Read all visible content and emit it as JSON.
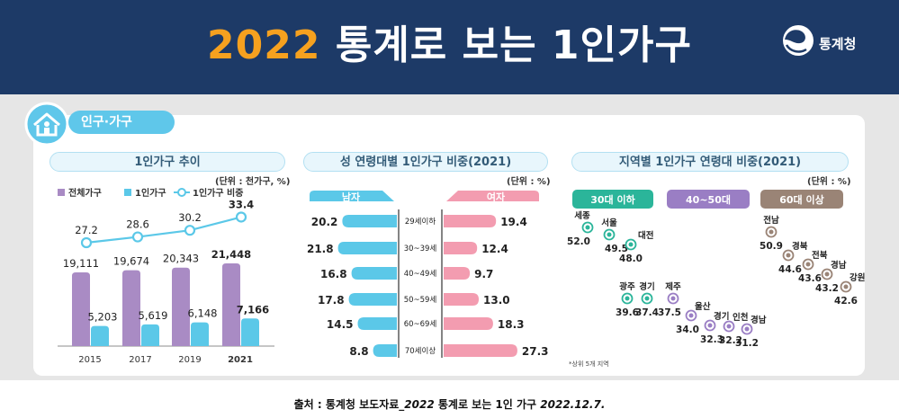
{
  "header": {
    "year": "2022",
    "title_rest": "통계로 보는 1인가구",
    "logo_text": "통계청"
  },
  "section": {
    "title": "인구·가구"
  },
  "source": {
    "prefix": "출처 : 통계청 보도자료_",
    "year": "2022",
    "doc": " 통계로 보는 1인 가구 ",
    "date": "2022.12.7."
  },
  "colors": {
    "purple": "#a98bc4",
    "cyan": "#5bc8e8",
    "pink": "#f39cb0",
    "green": "#2bb59a",
    "violet": "#9a7ec4",
    "brown": "#9a8476",
    "line": "#5bc8e8"
  },
  "chart_data": [
    {
      "type": "bar",
      "title": "1인가구 추이",
      "unit": "(단위 : 천가구, %)",
      "categories": [
        "2015",
        "2017",
        "2019",
        "2021"
      ],
      "series": [
        {
          "name": "전체가구",
          "values": [
            19111,
            19674,
            20343,
            21448
          ],
          "labels": [
            "19,111",
            "19,674",
            "20,343",
            "21,448"
          ]
        },
        {
          "name": "1인가구",
          "values": [
            5203,
            5619,
            6148,
            7166
          ],
          "labels": [
            "5,203",
            "5,619",
            "6,148",
            "7,166"
          ]
        },
        {
          "name": "1인가구 비중",
          "type": "line",
          "values": [
            27.2,
            28.6,
            30.2,
            33.4
          ],
          "labels": [
            "27.2",
            "28.6",
            "30.2",
            "33.4"
          ]
        }
      ]
    },
    {
      "type": "bar",
      "title": "성 연령대별 1인가구 비중(2021)",
      "unit": "(단위 : %)",
      "categories": [
        "29세이하",
        "30~39세",
        "40~49세",
        "50~59세",
        "60~69세",
        "70세이상"
      ],
      "series": [
        {
          "name": "남자",
          "values": [
            20.2,
            21.8,
            16.8,
            17.8,
            14.5,
            8.8
          ]
        },
        {
          "name": "여자",
          "values": [
            19.4,
            12.4,
            9.7,
            13.0,
            18.3,
            27.3
          ]
        }
      ]
    },
    {
      "type": "scatter",
      "title": "지역별 1인가구 연령대 비중(2021)",
      "unit": "(단위 : %)",
      "note": "*상위 5개 지역",
      "groups": [
        {
          "name": "30대 이하",
          "points": [
            {
              "region": "세종",
              "value": 52.0
            },
            {
              "region": "서울",
              "value": 49.5
            },
            {
              "region": "대전",
              "value": 48.0
            },
            {
              "region": "광주",
              "value": 39.6
            },
            {
              "region": "경기",
              "value": 37.4
            }
          ]
        },
        {
          "name": "40~50대",
          "points": [
            {
              "region": "제주",
              "value": 37.5
            },
            {
              "region": "울산",
              "value": 34.0
            },
            {
              "region": "경기",
              "value": 32.3
            },
            {
              "region": "인천",
              "value": 32.2
            },
            {
              "region": "경남",
              "value": 31.2
            }
          ]
        },
        {
          "name": "60대 이상",
          "points": [
            {
              "region": "전남",
              "value": 50.9
            },
            {
              "region": "경북",
              "value": 44.6
            },
            {
              "region": "전북",
              "value": 43.6
            },
            {
              "region": "경남",
              "value": 43.2
            },
            {
              "region": "강원",
              "value": 42.6
            }
          ]
        }
      ]
    }
  ]
}
